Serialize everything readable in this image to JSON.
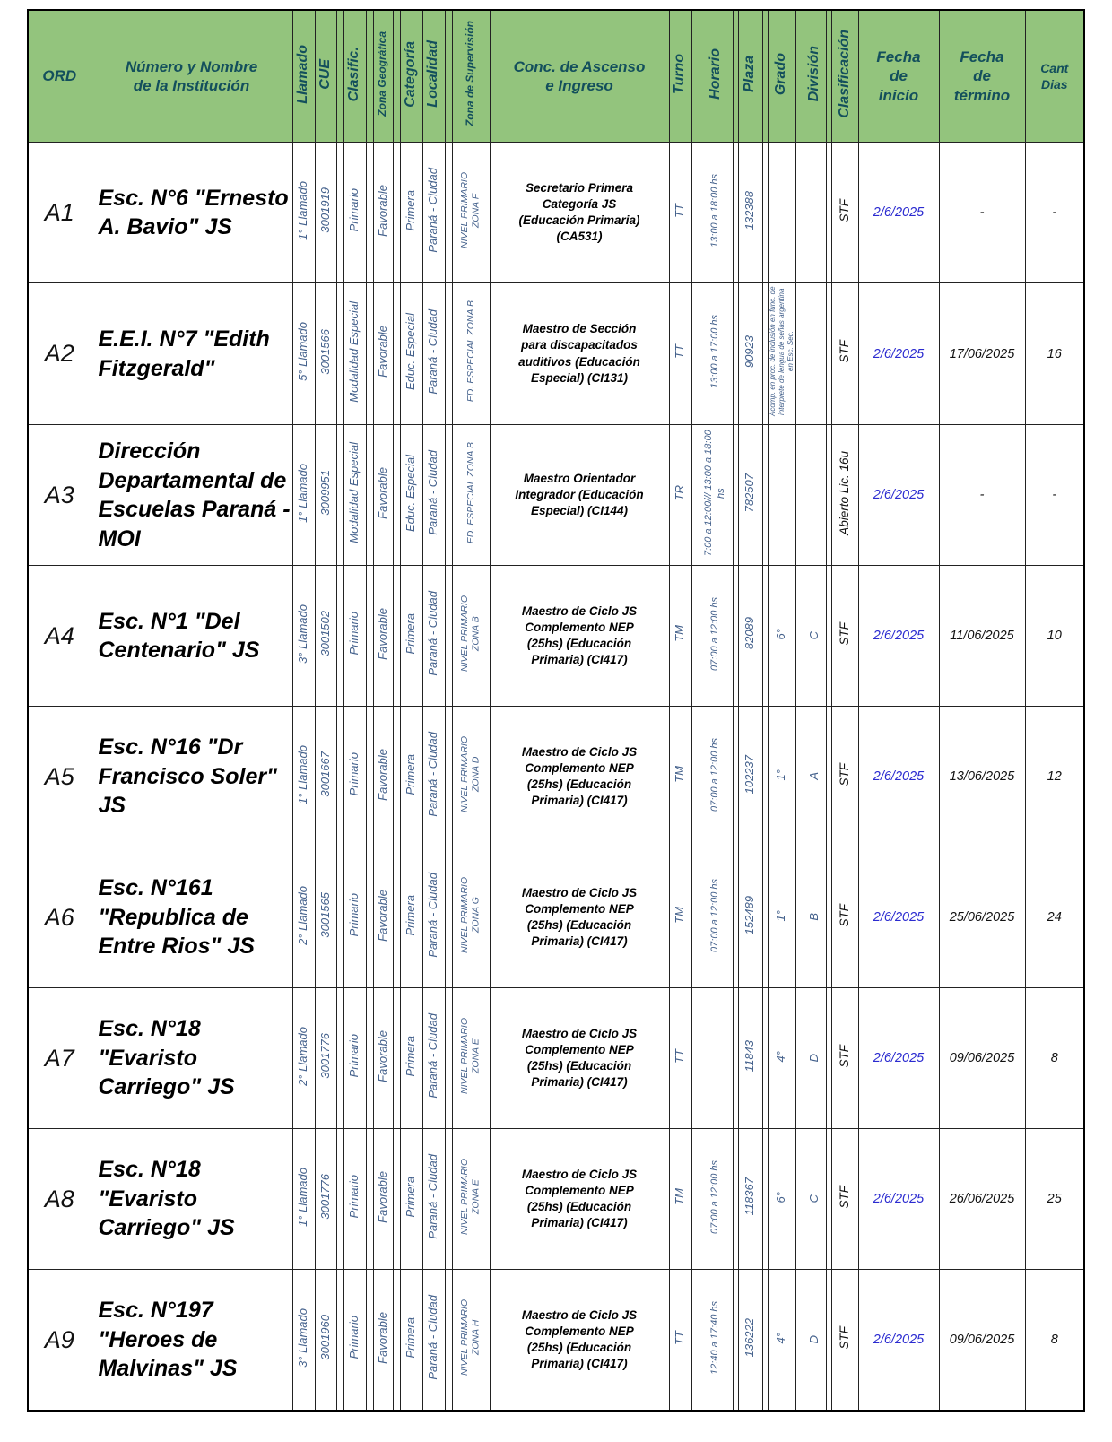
{
  "colors": {
    "header_bg": "#93c47d",
    "header_text": "#134f5c",
    "value_blue": "#44618c",
    "date_blue": "#2b2bd0",
    "text_black": "#111111"
  },
  "table": {
    "headers": {
      "ord": "ORD",
      "institucion": "Número y Nombre de la Institución",
      "llamado": "Llamado",
      "cue": "CUE",
      "clasific": "Clasific.",
      "zona_geografica": "Zona Geográfica",
      "categoria": "Categoría",
      "localidad": "Localidad",
      "zona_supervision": "Zona de Supervisión",
      "concurso": "Conc. de Ascenso e Ingreso",
      "turno": "Turno",
      "horario": "Horario",
      "plaza": "Plaza",
      "grado": "Grado",
      "division": "División",
      "clasificacion": "Clasificación",
      "fecha_inicio": "Fecha de inicio",
      "fecha_termino": "Fecha de término",
      "cant_dias": "Cant Dias"
    },
    "rows": [
      {
        "ord": "A1",
        "institucion": "Esc. N°6 \"Ernesto A. Bavio\" JS",
        "llamado": "1° Llamado",
        "cue": "3001919",
        "clasific": "Primario",
        "zona_geografica": "Favorable",
        "categoria": "Primera",
        "localidad": "Paraná - Ciudad",
        "zona_supervision": "NIVEL PRIMARIO\nZONA F",
        "concurso": "Secretario Primera Categoría JS (Educación Primaria) (CA531)",
        "turno": "TT",
        "horario": "13:00 a 18:00 hs",
        "plaza": "132388",
        "grado": "",
        "division": "",
        "clasificacion": "STF",
        "fecha_inicio": "2/6/2025",
        "fecha_termino": "-",
        "cant_dias": "-"
      },
      {
        "ord": "A2",
        "institucion": "E.E.I. N°7 \"Edith Fitzgerald\"",
        "llamado": "5° Llamado",
        "cue": "3001566",
        "clasific": "Modalidad Especial",
        "zona_geografica": "Favorable",
        "categoria": "Educ. Especial",
        "localidad": "Paraná - Ciudad",
        "zona_supervision": "ED. ESPECIAL ZONA B",
        "concurso": "Maestro de Sección para discapacitados auditivos (Educación Especial) (CI131)",
        "turno": "TT",
        "horario": "13:00 a 17:00 hs",
        "plaza": "90923",
        "grado": "Acomp. en proc. de inclusión en func. de interprete de lengua de señas argentina en Esc. Sec.",
        "division": "",
        "clasificacion": "STF",
        "fecha_inicio": "2/6/2025",
        "fecha_termino": "17/06/2025",
        "cant_dias": "16"
      },
      {
        "ord": "A3",
        "institucion": "Dirección Departamental de Escuelas Paraná - MOI",
        "llamado": "1° Llamado",
        "cue": "3009951",
        "clasific": "Modalidad Especial",
        "zona_geografica": "Favorable",
        "categoria": "Educ. Especial",
        "localidad": "Paraná - Ciudad",
        "zona_supervision": "ED. ESPECIAL ZONA B",
        "concurso": "Maestro Orientador Integrador (Educación Especial) (CI144)",
        "turno": "TR",
        "horario": "7:00 a 12:00/// 13:00 a 18:00 hs",
        "plaza": "782507",
        "grado": "",
        "division": "",
        "clasificacion": "Abierto Lic. 16u",
        "fecha_inicio": "2/6/2025",
        "fecha_termino": "-",
        "cant_dias": "-"
      },
      {
        "ord": "A4",
        "institucion": "Esc. N°1 \"Del Centenario\" JS",
        "llamado": "3° Llamado",
        "cue": "3001502",
        "clasific": "Primario",
        "zona_geografica": "Favorable",
        "categoria": "Primera",
        "localidad": "Paraná - Ciudad",
        "zona_supervision": "NIVEL PRIMARIO\nZONA B",
        "concurso": "Maestro de Ciclo JS Complemento NEP (25hs) (Educación Primaria) (CI417)",
        "turno": "TM",
        "horario": "07:00 a 12:00 hs",
        "plaza": "82089",
        "grado": "6°",
        "division": "C",
        "clasificacion": "STF",
        "fecha_inicio": "2/6/2025",
        "fecha_termino": "11/06/2025",
        "cant_dias": "10"
      },
      {
        "ord": "A5",
        "institucion": "Esc. N°16 \"Dr Francisco Soler\" JS",
        "llamado": "1° Llamado",
        "cue": "3001667",
        "clasific": "Primario",
        "zona_geografica": "Favorable",
        "categoria": "Primera",
        "localidad": "Paraná - Ciudad",
        "zona_supervision": "NIVEL PRIMARIO\nZONA D",
        "concurso": "Maestro de Ciclo JS Complemento NEP (25hs) (Educación Primaria) (CI417)",
        "turno": "TM",
        "horario": "07:00 a 12:00 hs",
        "plaza": "102237",
        "grado": "1°",
        "division": "A",
        "clasificacion": "STF",
        "fecha_inicio": "2/6/2025",
        "fecha_termino": "13/06/2025",
        "cant_dias": "12"
      },
      {
        "ord": "A6",
        "institucion": "Esc. N°161 \"Republica de Entre Rios\" JS",
        "llamado": "2° Llamado",
        "cue": "3001565",
        "clasific": "Primario",
        "zona_geografica": "Favorable",
        "categoria": "Primera",
        "localidad": "Paraná - Ciudad",
        "zona_supervision": "NIVEL PRIMARIO\nZONA G",
        "concurso": "Maestro de Ciclo JS Complemento NEP (25hs) (Educación Primaria) (CI417)",
        "turno": "TM",
        "horario": "07:00 a 12:00 hs",
        "plaza": "152489",
        "grado": "1°",
        "division": "B",
        "clasificacion": "STF",
        "fecha_inicio": "2/6/2025",
        "fecha_termino": "25/06/2025",
        "cant_dias": "24"
      },
      {
        "ord": "A7",
        "institucion": "Esc. N°18 \"Evaristo Carriego\" JS",
        "llamado": "2° Llamado",
        "cue": "3001776",
        "clasific": "Primario",
        "zona_geografica": "Favorable",
        "categoria": "Primera",
        "localidad": "Paraná - Ciudad",
        "zona_supervision": "NIVEL PRIMARIO\nZONA E",
        "concurso": "Maestro de Ciclo JS Complemento NEP (25hs) (Educación Primaria) (CI417)",
        "turno": "TT",
        "horario": "",
        "plaza": "11843",
        "grado": "4°",
        "division": "D",
        "clasificacion": "STF",
        "fecha_inicio": "2/6/2025",
        "fecha_termino": "09/06/2025",
        "cant_dias": "8"
      },
      {
        "ord": "A8",
        "institucion": "Esc. N°18 \"Evaristo Carriego\" JS",
        "llamado": "1° Llamado",
        "cue": "3001776",
        "clasific": "Primario",
        "zona_geografica": "Favorable",
        "categoria": "Primera",
        "localidad": "Paraná - Ciudad",
        "zona_supervision": "NIVEL PRIMARIO\nZONA E",
        "concurso": "Maestro de Ciclo JS Complemento NEP (25hs) (Educación Primaria) (CI417)",
        "turno": "TM",
        "horario": "07:00 a 12:00 hs",
        "plaza": "118367",
        "grado": "6°",
        "division": "C",
        "clasificacion": "STF",
        "fecha_inicio": "2/6/2025",
        "fecha_termino": "26/06/2025",
        "cant_dias": "25"
      },
      {
        "ord": "A9",
        "institucion": "Esc. N°197 \"Heroes de Malvinas\" JS",
        "llamado": "3° Llamado",
        "cue": "3001960",
        "clasific": "Primario",
        "zona_geografica": "Favorable",
        "categoria": "Primera",
        "localidad": "Paraná - Ciudad",
        "zona_supervision": "NIVEL PRIMARIO\nZONA H",
        "concurso": "Maestro de Ciclo JS Complemento NEP (25hs) (Educación Primaria) (CI417)",
        "turno": "TT",
        "horario": "12:40 a 17:40 hs",
        "plaza": "136222",
        "grado": "4°",
        "division": "D",
        "clasificacion": "STF",
        "fecha_inicio": "2/6/2025",
        "fecha_termino": "09/06/2025",
        "cant_dias": "8"
      }
    ]
  }
}
